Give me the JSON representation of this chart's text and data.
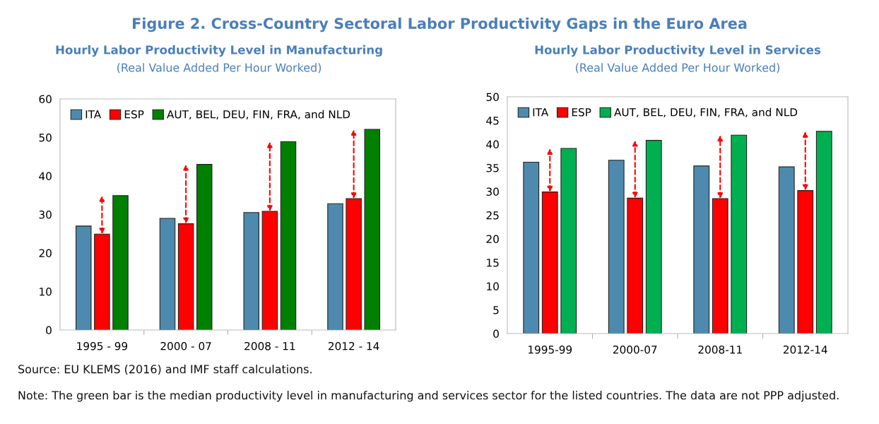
{
  "chart_data": [
    {
      "type": "bar",
      "title": "Hourly Labor Productivity Level in Manufacturing",
      "subtitle": "(Real Value Added Per Hour Worked)",
      "categories": [
        "1995 - 99",
        "2000 - 07",
        "2008 - 11",
        "2012 - 14"
      ],
      "series": [
        {
          "name": "ITA",
          "color": "#4e8aae",
          "values": [
            27.0,
            29.0,
            30.5,
            32.8
          ]
        },
        {
          "name": "ESP",
          "color": "#ff0000",
          "values": [
            24.9,
            27.6,
            30.8,
            34.1
          ]
        },
        {
          "name": "AUT, BEL, DEU, FIN, FRA, and NLD",
          "color": "#008000",
          "values": [
            34.9,
            43.0,
            48.9,
            52.1
          ]
        }
      ],
      "ylim": [
        0,
        60
      ],
      "yticks": [
        0,
        10,
        20,
        30,
        40,
        50,
        60
      ],
      "legend": "top left",
      "grid": false,
      "annotations": [
        "Figure 2. Cross-Country Sectoral Labor Productivity Gaps in the Euro Area",
        "Source: EU KLEMS (2016) and IMF staff calculations.",
        "Note: The green bar is the median productivity level in manufacturing and services sector for the listed countries. The data are not PPP adjusted."
      ]
    },
    {
      "type": "bar",
      "title": "Hourly Labor Productivity Level in Services",
      "subtitle": "(Real Value Added Per Hour Worked)",
      "categories": [
        "1995-99",
        "2000-07",
        "2008-11",
        "2012-14"
      ],
      "series": [
        {
          "name": "ITA",
          "color": "#4e8aae",
          "values": [
            36.2,
            36.6,
            35.4,
            35.2
          ]
        },
        {
          "name": "ESP",
          "color": "#ff0000",
          "values": [
            29.9,
            28.6,
            28.5,
            30.2
          ]
        },
        {
          "name": "AUT, BEL, DEU, FIN, FRA, and NLD",
          "color": "#00b050",
          "values": [
            39.1,
            40.8,
            41.9,
            42.7
          ]
        }
      ],
      "ylim": [
        0,
        50
      ],
      "yticks": [
        0,
        5,
        10,
        15,
        20,
        25,
        30,
        35,
        40,
        45,
        50
      ],
      "legend": "top left",
      "grid": false
    }
  ]
}
